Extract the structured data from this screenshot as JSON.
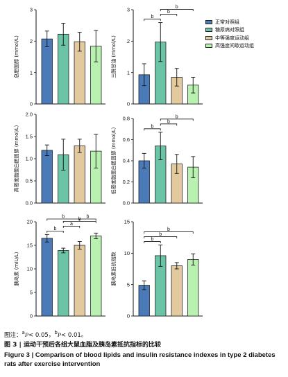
{
  "legend": {
    "items": [
      {
        "label": "正常对照组",
        "color": "#4a7ab8"
      },
      {
        "label": "糖尿病对照组",
        "color": "#6cc4a6"
      },
      {
        "label": "中等强度运动组",
        "color": "#e2c99e"
      },
      {
        "label": "高强度间歇运动组",
        "color": "#b9f2b0"
      }
    ]
  },
  "caption": {
    "note_prefix": "图注：",
    "note_a_sup": "a",
    "note_a_p": "P",
    "note_a_val": "< 0.05，",
    "note_b_sup": "b",
    "note_b_p": "P",
    "note_b_val": "< 0.01。",
    "title_cn": "图 3 | 运动干预后各组大鼠血脂及胰岛素抵抗指标的比较",
    "title_en_figure": "Figure 3 |",
    "title_en_text": "Comparison of blood lipids and insulin resistance indexes in type 2 diabetes rats after exercise intervention"
  },
  "chart_data": [
    {
      "type": "bar",
      "ylabel": "总胆固醇 (mmol/L)",
      "ylim": [
        0,
        3
      ],
      "yticks": [
        "0",
        "1",
        "2",
        "3"
      ],
      "values": [
        2.07,
        2.22,
        1.98,
        1.84
      ],
      "errors": [
        0.25,
        0.35,
        0.3,
        0.5
      ],
      "significance": []
    },
    {
      "type": "bar",
      "ylabel": "三酰甘油 (mmol/L)",
      "ylim": [
        0,
        3
      ],
      "yticks": [
        "0",
        "1",
        "2",
        "3"
      ],
      "values": [
        0.93,
        1.97,
        0.85,
        0.6
      ],
      "errors": [
        0.35,
        0.62,
        0.28,
        0.25
      ],
      "significance": [
        {
          "from": 0,
          "to": 1,
          "label": "b"
        },
        {
          "from": 1,
          "to": 2,
          "label": "b"
        },
        {
          "from": 1,
          "to": 3,
          "label": "b"
        }
      ]
    },
    {
      "type": "bar",
      "ylabel": "高密度脂蛋白胆固醇 (mmol/L)",
      "ylim": [
        0,
        2.0
      ],
      "yticks": [
        "0.0",
        "0.5",
        "1.0",
        "1.5",
        "2.0"
      ],
      "values": [
        1.19,
        1.09,
        1.29,
        1.17
      ],
      "errors": [
        0.12,
        0.35,
        0.15,
        0.38
      ],
      "significance": []
    },
    {
      "type": "bar",
      "ylabel": "低密度脂蛋白胆固醇 (mmol/L)",
      "ylim": [
        0,
        0.8
      ],
      "yticks": [
        "0.0",
        "0.2",
        "0.4",
        "0.6",
        "0.8"
      ],
      "values": [
        0.4,
        0.54,
        0.37,
        0.34
      ],
      "errors": [
        0.07,
        0.13,
        0.09,
        0.1
      ],
      "significance": [
        {
          "from": 0,
          "to": 1,
          "label": "b"
        },
        {
          "from": 1,
          "to": 2,
          "label": "b"
        },
        {
          "from": 1,
          "to": 3,
          "label": "b"
        }
      ]
    },
    {
      "type": "bar",
      "ylabel": "胰岛素 (mIU/L)",
      "ylim": [
        0,
        20
      ],
      "yticks": [
        "0",
        "5",
        "10",
        "15",
        "20"
      ],
      "values": [
        16.5,
        13.9,
        15.0,
        17.0
      ],
      "errors": [
        0.8,
        0.5,
        0.8,
        0.6
      ],
      "significance": [
        {
          "from": 0,
          "to": 1,
          "label": "b"
        },
        {
          "from": 1,
          "to": 2,
          "label": "a"
        },
        {
          "from": 1,
          "to": 3,
          "label": "b"
        },
        {
          "from": 0,
          "to": 2,
          "label": "b"
        },
        {
          "from": 2,
          "to": 3,
          "label": "b"
        }
      ]
    },
    {
      "type": "bar",
      "ylabel": "胰岛素抵抗指数",
      "ylim": [
        0,
        15
      ],
      "yticks": [
        "0",
        "5",
        "10",
        "15"
      ],
      "values": [
        4.9,
        9.6,
        8.0,
        9.0
      ],
      "errors": [
        0.7,
        1.7,
        0.5,
        0.9
      ],
      "significance": [
        {
          "from": 0,
          "to": 1,
          "label": "b"
        },
        {
          "from": 0,
          "to": 2,
          "label": "b"
        },
        {
          "from": 0,
          "to": 3,
          "label": "b"
        }
      ]
    }
  ]
}
